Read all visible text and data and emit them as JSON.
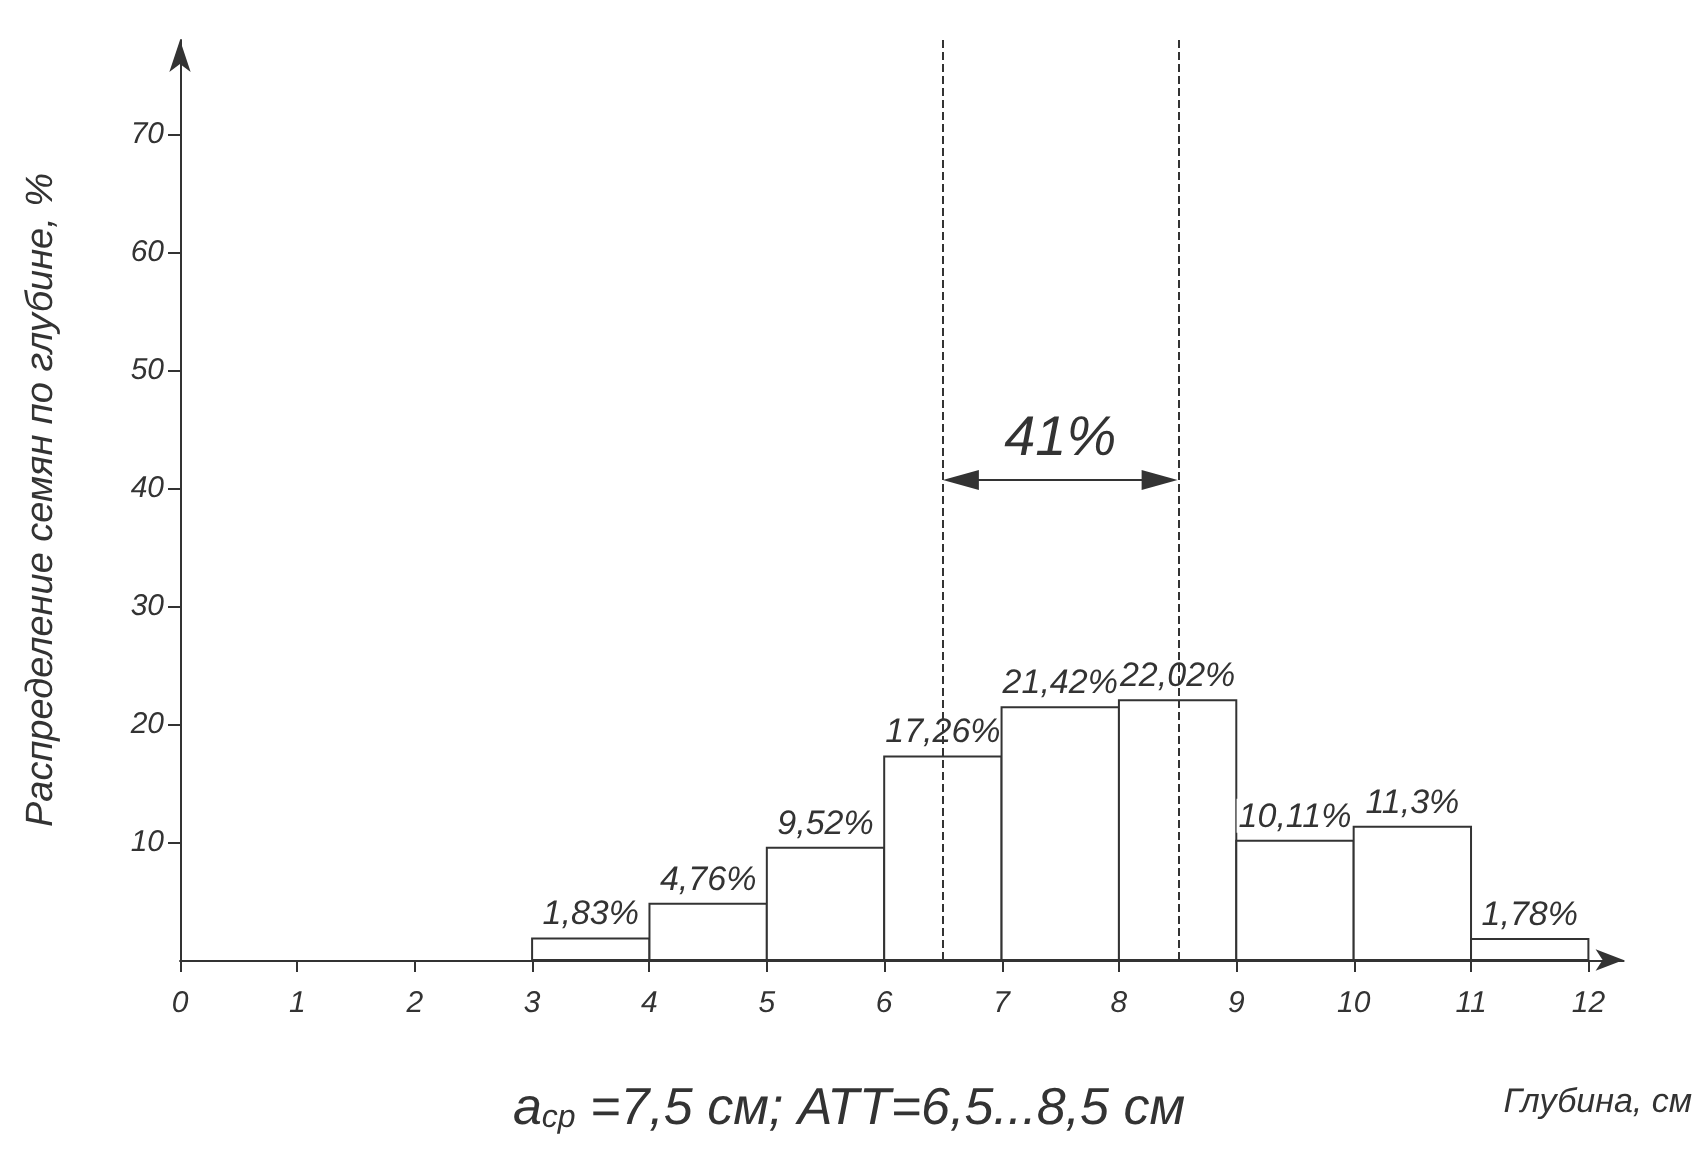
{
  "chart_data": {
    "type": "histogram",
    "xlabel": "Глубина, см",
    "ylabel": "Распределение семян по глубине, %",
    "bins": [
      3,
      4,
      5,
      6,
      7,
      8,
      9,
      10,
      11,
      12
    ],
    "values": [
      1.83,
      4.76,
      9.52,
      17.26,
      21.42,
      22.02,
      10.11,
      11.3,
      1.78
    ],
    "value_labels": [
      "1,83%",
      "4,76%",
      "9,52%",
      "17,26%",
      "21,42%",
      "22,02%",
      "10,11%",
      "11,3%",
      "1,78%"
    ],
    "color": "#ffffff",
    "xlim": [
      0,
      12.3
    ],
    "ylim": [
      0,
      78
    ],
    "xticks": [
      0,
      1,
      2,
      3,
      4,
      5,
      6,
      7,
      8,
      9,
      10,
      11,
      12
    ],
    "yticks": [
      10,
      20,
      30,
      40,
      50,
      60,
      70
    ],
    "grid": false,
    "ref_lines": [
      {
        "axis": "x",
        "value": 6.5,
        "line_style": "dashed"
      },
      {
        "axis": "x",
        "value": 8.5,
        "line_style": "dashed"
      }
    ],
    "annotations": [
      "41%",
      "a$_{ср}$ =7,5 см; АТТ=6,5...8,5 см"
    ]
  }
}
